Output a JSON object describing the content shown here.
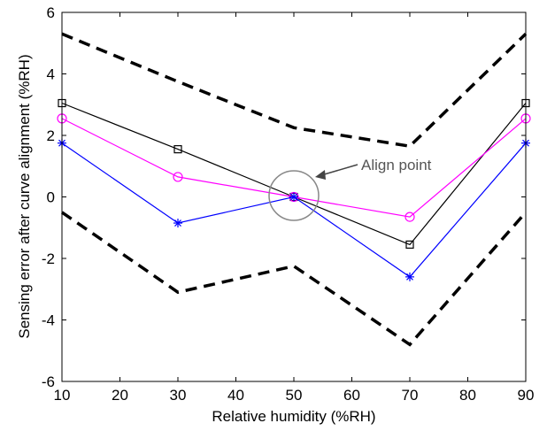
{
  "chart_data": {
    "type": "line",
    "xlabel": "Relative humidity (%RH)",
    "ylabel": "Sensing error after curve alignment (%RH)",
    "xlim": [
      10,
      90
    ],
    "ylim": [
      -6,
      6
    ],
    "x_ticks": [
      "10",
      "20",
      "30",
      "40",
      "50",
      "60",
      "70",
      "80",
      "90"
    ],
    "y_ticks": [
      "6",
      "4",
      "2",
      "0",
      "-2",
      "-4",
      "-6"
    ],
    "grid": false,
    "x": [
      10,
      30,
      50,
      70,
      90
    ],
    "series": [
      {
        "values": [
          5.3,
          3.75,
          2.25,
          1.65,
          5.3
        ],
        "color": "#000000",
        "style": "dashed",
        "marker": "none"
      },
      {
        "values": [
          -0.5,
          -3.1,
          -2.25,
          -4.8,
          -0.5
        ],
        "color": "#000000",
        "style": "dashed",
        "marker": "none"
      },
      {
        "values": [
          3.05,
          1.55,
          0.0,
          -1.55,
          3.05
        ],
        "color": "#000000",
        "style": "solid",
        "marker": "square"
      },
      {
        "values": [
          2.55,
          0.65,
          0.0,
          -0.65,
          2.55
        ],
        "color": "#ff00ff",
        "style": "solid",
        "marker": "circle"
      },
      {
        "values": [
          1.75,
          -0.85,
          0.0,
          -2.6,
          1.75
        ],
        "color": "#0000ff",
        "style": "solid",
        "marker": "asterisk"
      }
    ],
    "annotations": [
      {
        "text": "Align point",
        "x": 50,
        "y": 0
      }
    ]
  }
}
